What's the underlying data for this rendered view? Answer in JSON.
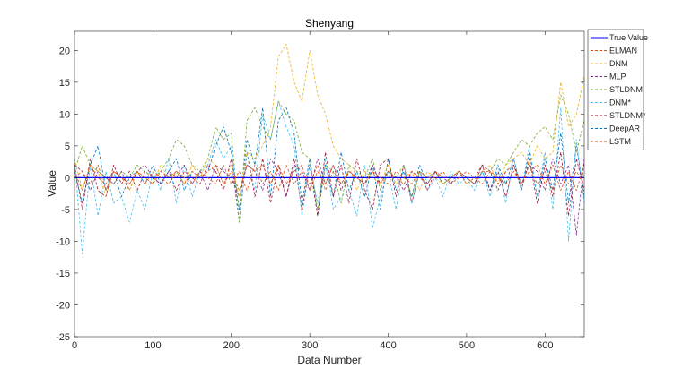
{
  "chart_data": {
    "type": "line",
    "title": "Shenyang",
    "xlabel": "Data Number",
    "ylabel": "Value",
    "xlim": [
      0,
      650
    ],
    "ylim": [
      -25,
      23
    ],
    "xticks": [
      "0",
      "100",
      "200",
      "300",
      "400",
      "500",
      "600"
    ],
    "yticks": [
      "-25",
      "-20",
      "-15",
      "-10",
      "-5",
      "0",
      "5",
      "10",
      "15",
      "20"
    ],
    "grid": false,
    "legend_position": "outside-top-right",
    "x": [
      0,
      10,
      20,
      30,
      40,
      50,
      60,
      70,
      80,
      90,
      100,
      110,
      120,
      130,
      140,
      150,
      160,
      170,
      180,
      190,
      200,
      210,
      220,
      230,
      240,
      250,
      260,
      270,
      280,
      290,
      300,
      310,
      320,
      330,
      340,
      350,
      360,
      370,
      380,
      390,
      400,
      410,
      420,
      430,
      440,
      450,
      460,
      470,
      480,
      490,
      500,
      510,
      520,
      530,
      540,
      550,
      560,
      570,
      580,
      590,
      600,
      610,
      620,
      630,
      640,
      650
    ],
    "series": [
      {
        "name": "True Value",
        "color": "#0000FF",
        "style": "solid",
        "values": [
          0,
          0,
          0,
          0,
          0,
          0,
          0,
          0,
          0,
          0,
          0,
          0,
          0,
          0,
          0,
          0,
          0,
          0,
          0,
          0,
          0,
          0,
          0,
          0,
          0,
          0,
          0,
          0,
          0,
          0,
          0,
          0,
          0,
          0,
          0,
          0,
          0,
          0,
          0,
          0,
          0,
          0,
          0,
          0,
          0,
          0,
          0,
          0,
          0,
          0,
          0,
          0,
          0,
          0,
          0,
          0,
          0,
          0,
          0,
          0,
          0,
          0,
          0,
          0,
          0,
          0
        ]
      },
      {
        "name": "ELMAN",
        "color": "#D95319",
        "style": "dashed",
        "values": [
          1,
          -2,
          2,
          0,
          -1,
          1,
          0,
          -1,
          1,
          0,
          -1,
          1,
          0,
          1,
          -1,
          1,
          0,
          1,
          2,
          -1,
          1,
          -2,
          2,
          1,
          2,
          -1,
          2,
          -1,
          1,
          2,
          -2,
          1,
          -1,
          2,
          -1,
          1,
          0,
          -1,
          1,
          -1,
          1,
          0,
          -1,
          1,
          0,
          -1,
          1,
          0,
          0,
          1,
          0,
          -1,
          1,
          1,
          -1,
          1,
          2,
          -1,
          1,
          2,
          -1,
          2,
          -2,
          1,
          -2,
          2
        ]
      },
      {
        "name": "DNM",
        "color": "#EDB120",
        "style": "dashed",
        "values": [
          3,
          -2,
          2,
          1,
          -3,
          1,
          0,
          -2,
          1,
          0,
          -1,
          2,
          0,
          1,
          -1,
          2,
          0,
          3,
          2,
          -1,
          2,
          -3,
          4,
          3,
          5,
          8,
          19,
          21,
          15,
          12,
          20,
          13,
          10,
          5,
          3,
          2,
          -2,
          1,
          0,
          -1,
          2,
          -1,
          0,
          1,
          -2,
          1,
          0,
          -1,
          0,
          1,
          -1,
          0,
          1,
          2,
          -1,
          2,
          3,
          4,
          2,
          5,
          3,
          4,
          15,
          8,
          10,
          16
        ]
      },
      {
        "name": "MLP",
        "color": "#7E2F8E",
        "style": "dashed",
        "values": [
          2,
          1,
          -2,
          1,
          0,
          -1,
          1,
          -2,
          1,
          2,
          0,
          -1,
          1,
          0,
          2,
          -1,
          1,
          -2,
          2,
          1,
          0,
          -3,
          2,
          1,
          -2,
          3,
          1,
          -3,
          2,
          1,
          -2,
          3,
          -1,
          2,
          -2,
          1,
          0,
          -1,
          2,
          -1,
          1,
          0,
          -2,
          1,
          0,
          -1,
          1,
          0,
          -1,
          1,
          0,
          -1,
          2,
          1,
          -2,
          1,
          2,
          -1,
          2,
          1,
          -2,
          3,
          -1,
          2,
          -9,
          3
        ]
      },
      {
        "name": "STLDNM",
        "color": "#77AC30",
        "style": "dashed",
        "values": [
          1,
          5,
          2,
          1,
          0,
          -1,
          1,
          0,
          2,
          1,
          0,
          1,
          3,
          6,
          5,
          2,
          1,
          3,
          8,
          6,
          7,
          -7,
          9,
          11,
          8,
          6,
          12,
          10,
          9,
          4,
          3,
          -5,
          2,
          1,
          -4,
          2,
          1,
          0,
          3,
          -2,
          1,
          0,
          2,
          -3,
          1,
          0,
          1,
          -1,
          0,
          1,
          0,
          -1,
          2,
          1,
          3,
          2,
          4,
          6,
          5,
          7,
          8,
          6,
          13,
          10,
          4,
          9
        ]
      },
      {
        "name": "DNM*",
        "color": "#4DBEEE",
        "style": "dashed",
        "values": [
          3,
          -12,
          2,
          -6,
          1,
          -4,
          -3,
          -7,
          -2,
          -5,
          1,
          -2,
          3,
          -4,
          2,
          -3,
          1,
          2,
          6,
          3,
          5,
          -7,
          4,
          -2,
          10,
          6,
          12,
          8,
          5,
          -6,
          2,
          -4,
          3,
          -5,
          -3,
          -2,
          -6,
          2,
          -8,
          -3,
          1,
          -5,
          2,
          -4,
          1,
          -2,
          0,
          -3,
          1,
          -1,
          0,
          -2,
          1,
          -3,
          2,
          -4,
          3,
          -2,
          5,
          -3,
          4,
          -5,
          11,
          -10,
          6,
          -4
        ]
      },
      {
        "name": "STLDNM*",
        "color": "#A2142F",
        "style": "dashed",
        "values": [
          2,
          -5,
          3,
          -2,
          -3,
          2,
          -1,
          1,
          -2,
          1,
          0,
          -1,
          1,
          -2,
          1,
          0,
          -1,
          2,
          1,
          -2,
          3,
          -7,
          4,
          -3,
          3,
          -4,
          2,
          -3,
          3,
          -5,
          2,
          -6,
          4,
          -3,
          2,
          -4,
          3,
          -2,
          -5,
          2,
          3,
          -3,
          2,
          -4,
          1,
          -2,
          1,
          -1,
          0,
          1,
          -1,
          0,
          2,
          -2,
          1,
          -3,
          2,
          -2,
          3,
          -4,
          2,
          -3,
          4,
          -6,
          3,
          -2
        ]
      },
      {
        "name": "DeepAR",
        "color": "#0072BD",
        "style": "dashed",
        "values": [
          1,
          -4,
          2,
          5,
          -2,
          1,
          -3,
          0,
          1,
          -1,
          2,
          -1,
          1,
          3,
          -2,
          1,
          0,
          1,
          5,
          8,
          4,
          -5,
          6,
          2,
          11,
          -3,
          9,
          11,
          7,
          -4,
          3,
          -6,
          2,
          -3,
          4,
          -2,
          1,
          -3,
          2,
          -5,
          3,
          -2,
          1,
          -3,
          2,
          -1,
          1,
          -1,
          0,
          1,
          0,
          -1,
          1,
          -2,
          2,
          -1,
          3,
          -2,
          4,
          -3,
          3,
          -2,
          7,
          -4,
          5,
          -3
        ]
      },
      {
        "name": "LSTM",
        "color": "#D95319",
        "style": "dashed",
        "values": [
          0,
          1,
          -1,
          2,
          -2,
          1,
          0,
          -1,
          1,
          -1,
          1,
          0,
          -1,
          1,
          0,
          -1,
          1,
          0,
          -1,
          2,
          -1,
          1,
          -2,
          2,
          -1,
          1,
          -2,
          2,
          -1,
          1,
          -1,
          2,
          -2,
          1,
          -1,
          1,
          0,
          -1,
          1,
          0,
          -1,
          1,
          0,
          -1,
          1,
          0,
          0,
          1,
          -1,
          0,
          1,
          0,
          -1,
          1,
          0,
          -1,
          1,
          -1,
          2,
          -1,
          1,
          -2,
          2,
          -1,
          1,
          -1
        ]
      }
    ]
  }
}
